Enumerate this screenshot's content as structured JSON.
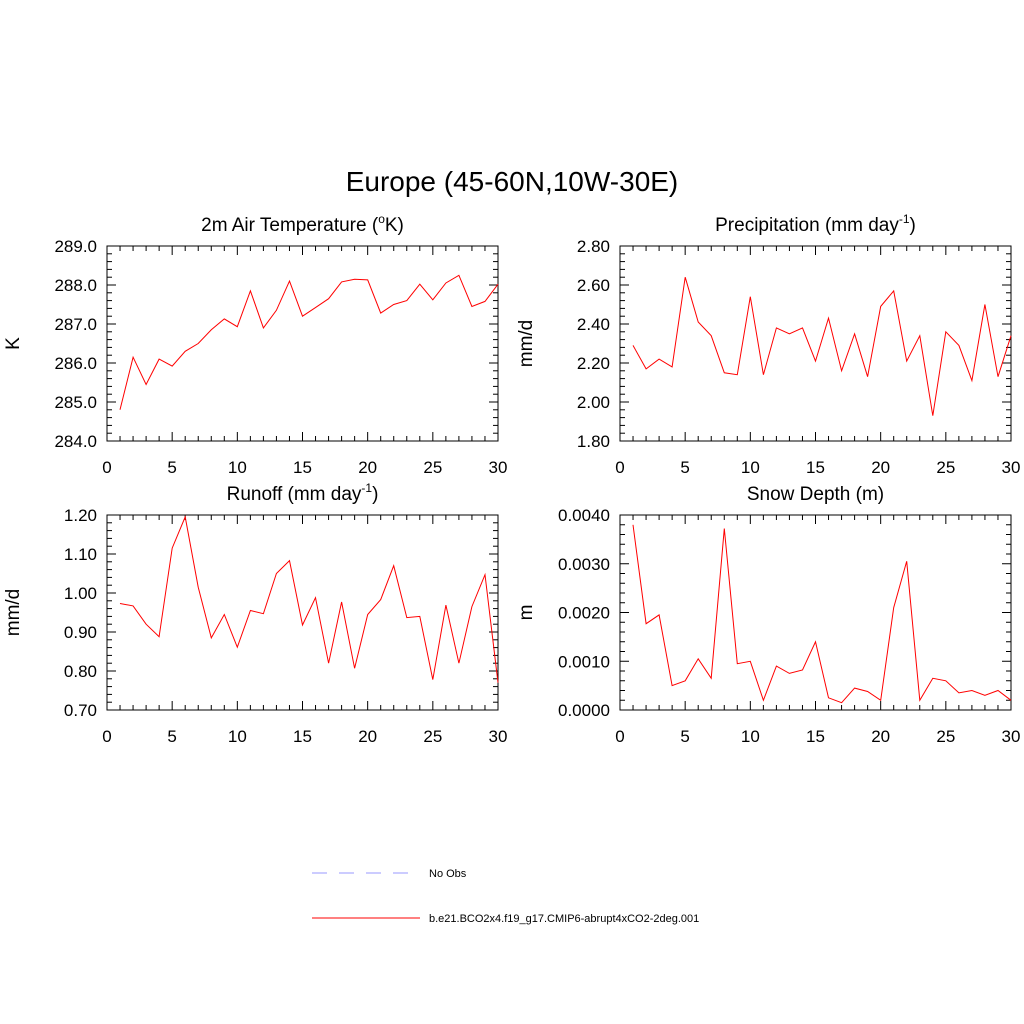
{
  "figure_title": "Europe (45-60N,10W-30E)",
  "legend": {
    "obs_label": "No Obs",
    "obs_color": "#9999ff",
    "model_label": "b.e21.BCO2x4.f19_g17.CMIP6-abrupt4xCO2-2deg.001",
    "model_color": "#ff0000"
  },
  "chart_data": [
    {
      "type": "line",
      "title": "2m Air Temperature",
      "title_unit": "K",
      "ylabel": "K",
      "xlim": [
        0,
        30
      ],
      "ylim": [
        284.0,
        289.0
      ],
      "x_ticks": [
        0,
        5,
        10,
        15,
        20,
        25,
        30
      ],
      "y_ticks": [
        284.0,
        285.0,
        286.0,
        287.0,
        288.0,
        289.0
      ],
      "y_decimals": 1,
      "x": [
        1,
        2,
        3,
        4,
        5,
        6,
        7,
        8,
        9,
        10,
        11,
        12,
        13,
        14,
        15,
        16,
        17,
        18,
        19,
        20,
        21,
        22,
        23,
        24,
        25,
        26,
        27,
        28,
        29,
        30
      ],
      "series": [
        {
          "name": "b.e21.BCO2x4.f19_g17.CMIP6-abrupt4xCO2-2deg.001",
          "values": [
            284.8,
            286.15,
            285.45,
            286.1,
            285.92,
            286.3,
            286.5,
            286.85,
            287.13,
            286.93,
            287.85,
            286.9,
            287.35,
            288.1,
            287.2,
            287.42,
            287.65,
            288.08,
            288.15,
            288.13,
            287.28,
            287.5,
            287.6,
            288.02,
            287.62,
            288.05,
            288.25,
            287.45,
            287.58,
            288.02
          ]
        }
      ]
    },
    {
      "type": "line",
      "title": "Precipitation (mm day",
      "title_sup": "-1",
      "title_end": ")",
      "ylabel": "mm/d",
      "xlim": [
        0,
        30
      ],
      "ylim": [
        1.8,
        2.8
      ],
      "x_ticks": [
        0,
        5,
        10,
        15,
        20,
        25,
        30
      ],
      "y_ticks": [
        1.8,
        2.0,
        2.2,
        2.4,
        2.6,
        2.8
      ],
      "y_decimals": 2,
      "x": [
        1,
        2,
        3,
        4,
        5,
        6,
        7,
        8,
        9,
        10,
        11,
        12,
        13,
        14,
        15,
        16,
        17,
        18,
        19,
        20,
        21,
        22,
        23,
        24,
        25,
        26,
        27,
        28,
        29,
        30
      ],
      "series": [
        {
          "name": "b.e21.BCO2x4.f19_g17.CMIP6-abrupt4xCO2-2deg.001",
          "values": [
            2.29,
            2.17,
            2.22,
            2.18,
            2.64,
            2.41,
            2.34,
            2.15,
            2.14,
            2.54,
            2.14,
            2.38,
            2.35,
            2.38,
            2.21,
            2.43,
            2.16,
            2.35,
            2.13,
            2.49,
            2.57,
            2.21,
            2.34,
            1.93,
            2.36,
            2.29,
            2.11,
            2.5,
            2.13,
            2.34
          ]
        }
      ]
    },
    {
      "type": "line",
      "title": "Runoff (mm day",
      "title_sup": "-1",
      "title_end": ")",
      "ylabel": "mm/d",
      "xlim": [
        0,
        30
      ],
      "ylim": [
        0.7,
        1.2
      ],
      "x_ticks": [
        0,
        5,
        10,
        15,
        20,
        25,
        30
      ],
      "y_ticks": [
        0.7,
        0.8,
        0.9,
        1.0,
        1.1,
        1.2
      ],
      "y_decimals": 2,
      "x": [
        1,
        2,
        3,
        4,
        5,
        6,
        7,
        8,
        9,
        10,
        11,
        12,
        13,
        14,
        15,
        16,
        17,
        18,
        19,
        20,
        21,
        22,
        23,
        24,
        25,
        26,
        27,
        28,
        29,
        30
      ],
      "series": [
        {
          "name": "b.e21.BCO2x4.f19_g17.CMIP6-abrupt4xCO2-2deg.001",
          "values": [
            0.973,
            0.967,
            0.92,
            0.888,
            1.115,
            1.195,
            1.015,
            0.885,
            0.945,
            0.861,
            0.955,
            0.947,
            1.05,
            1.083,
            0.918,
            0.988,
            0.82,
            0.977,
            0.807,
            0.945,
            0.983,
            1.07,
            0.937,
            0.94,
            0.778,
            0.969,
            0.82,
            0.965,
            1.047,
            0.77
          ]
        }
      ]
    },
    {
      "type": "line",
      "title": "Snow Depth (m)",
      "ylabel": "m",
      "xlim": [
        0,
        30
      ],
      "ylim": [
        0.0,
        0.004
      ],
      "x_ticks": [
        0,
        5,
        10,
        15,
        20,
        25,
        30
      ],
      "y_ticks": [
        0.0,
        0.001,
        0.002,
        0.003,
        0.004
      ],
      "y_decimals": 4,
      "x": [
        1,
        2,
        3,
        4,
        5,
        6,
        7,
        8,
        9,
        10,
        11,
        12,
        13,
        14,
        15,
        16,
        17,
        18,
        19,
        20,
        21,
        22,
        23,
        24,
        25,
        26,
        27,
        28,
        29,
        30
      ],
      "series": [
        {
          "name": "b.e21.BCO2x4.f19_g17.CMIP6-abrupt4xCO2-2deg.001",
          "values": [
            0.0038,
            0.00177,
            0.00195,
            0.0005,
            0.0006,
            0.00105,
            0.00065,
            0.00372,
            0.00095,
            0.001,
            0.0002,
            0.0009,
            0.00075,
            0.00082,
            0.0014,
            0.00025,
            0.00015,
            0.00045,
            0.00038,
            0.0002,
            0.0021,
            0.00305,
            0.0002,
            0.00065,
            0.0006,
            0.00035,
            0.0004,
            0.0003,
            0.0004,
            0.0002
          ]
        }
      ]
    }
  ]
}
